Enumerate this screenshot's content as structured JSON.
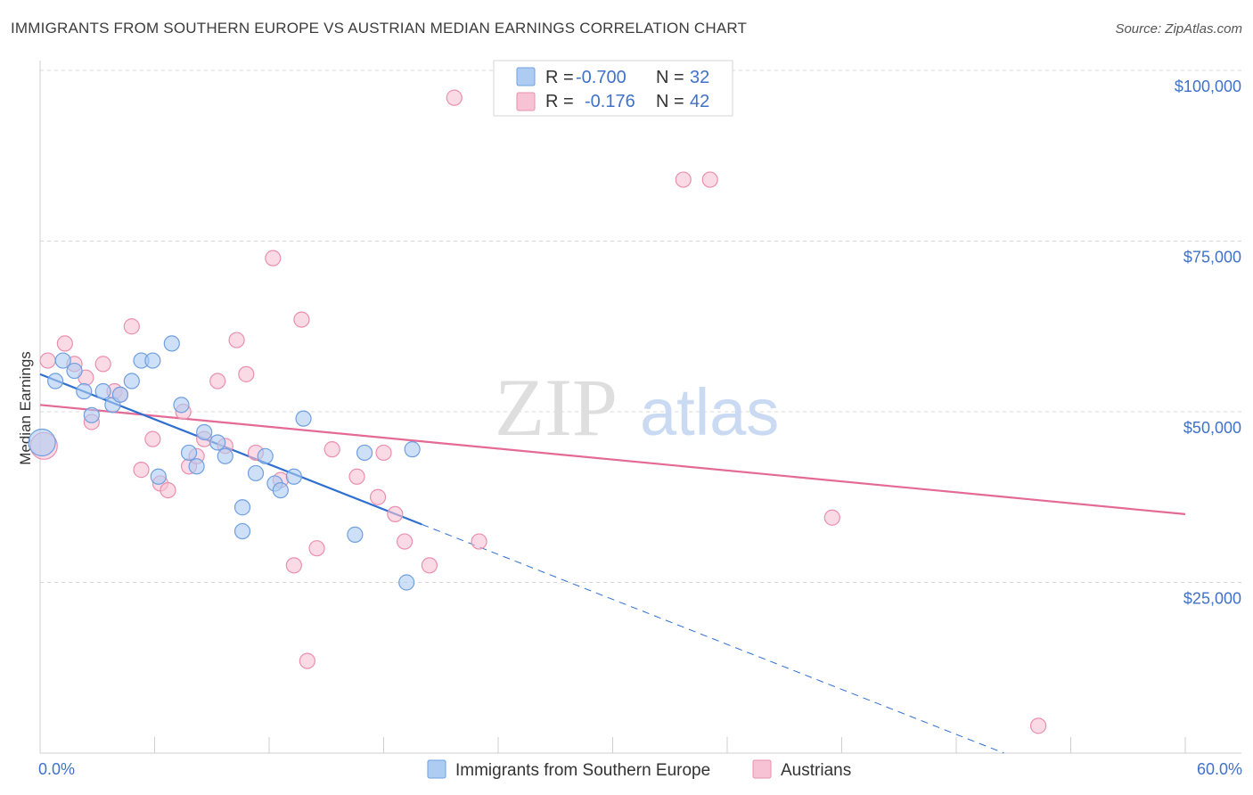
{
  "header": {
    "title": "IMMIGRANTS FROM SOUTHERN EUROPE VS AUSTRIAN MEDIAN EARNINGS CORRELATION CHART",
    "source": "Source: ZipAtlas.com"
  },
  "watermark": {
    "part1": "ZIP",
    "part2": "atlas"
  },
  "colors": {
    "blue_fill": "#aeccf2",
    "blue_stroke": "#6f9fe0",
    "blue_line": "#2e6fcf",
    "pink_fill": "#f7c3d4",
    "pink_stroke": "#ea8fae",
    "pink_line": "#e46a95",
    "axis_text": "#3f72c8",
    "grid": "#d8d8d8"
  },
  "chart_data": {
    "type": "scatter",
    "title": "IMMIGRANTS FROM SOUTHERN EUROPE VS AUSTRIAN MEDIAN EARNINGS CORRELATION CHART",
    "xlabel": "",
    "ylabel": "Median Earnings",
    "xlim": [
      0,
      60
    ],
    "ylim": [
      0,
      100000
    ],
    "x_tick_labels": [
      "0.0%",
      "60.0%"
    ],
    "y_ticks": [
      25000,
      50000,
      75000,
      100000
    ],
    "y_tick_labels": [
      "$25,000",
      "$50,000",
      "$75,000",
      "$100,000"
    ],
    "legend_stats": [
      {
        "r_label": "R =",
        "r": "-0.700",
        "n_label": "N =",
        "n": "32"
      },
      {
        "r_label": "R =",
        "r": "-0.176",
        "n_label": "N =",
        "n": "42"
      }
    ],
    "series": [
      {
        "name": "Immigrants from Southern Europe",
        "trend": {
          "x0": 0,
          "y0": 55500,
          "x1": 20,
          "y1": 33500,
          "dash_to_x": 50.5,
          "dash_to_y": 0
        },
        "points": [
          [
            0.1,
            45500
          ],
          [
            0.8,
            54500
          ],
          [
            1.2,
            57500
          ],
          [
            1.8,
            56000
          ],
          [
            2.3,
            53000
          ],
          [
            2.7,
            49500
          ],
          [
            3.3,
            53000
          ],
          [
            3.8,
            51000
          ],
          [
            4.2,
            52500
          ],
          [
            4.8,
            54500
          ],
          [
            5.3,
            57500
          ],
          [
            5.9,
            57500
          ],
          [
            6.2,
            40500
          ],
          [
            6.9,
            60000
          ],
          [
            7.4,
            51000
          ],
          [
            7.8,
            44000
          ],
          [
            8.2,
            42000
          ],
          [
            8.6,
            47000
          ],
          [
            9.3,
            45500
          ],
          [
            9.7,
            43500
          ],
          [
            10.6,
            36000
          ],
          [
            10.6,
            32500
          ],
          [
            11.3,
            41000
          ],
          [
            11.8,
            43500
          ],
          [
            12.3,
            39500
          ],
          [
            12.6,
            38500
          ],
          [
            13.3,
            40500
          ],
          [
            13.8,
            49000
          ],
          [
            16.5,
            32000
          ],
          [
            17.0,
            44000
          ],
          [
            19.2,
            25000
          ],
          [
            19.5,
            44500
          ]
        ]
      },
      {
        "name": "Austrians",
        "trend": {
          "x0": 0,
          "y0": 51000,
          "x1": 60,
          "y1": 35000
        },
        "points": [
          [
            0.2,
            45000
          ],
          [
            0.4,
            57500
          ],
          [
            1.3,
            60000
          ],
          [
            1.8,
            57000
          ],
          [
            2.4,
            55000
          ],
          [
            2.7,
            48500
          ],
          [
            3.3,
            57000
          ],
          [
            3.9,
            53000
          ],
          [
            4.2,
            52500
          ],
          [
            4.8,
            62500
          ],
          [
            5.3,
            41500
          ],
          [
            5.9,
            46000
          ],
          [
            6.3,
            39500
          ],
          [
            6.7,
            38500
          ],
          [
            7.5,
            50000
          ],
          [
            7.8,
            42000
          ],
          [
            8.2,
            43500
          ],
          [
            8.6,
            46000
          ],
          [
            9.3,
            54500
          ],
          [
            9.7,
            45000
          ],
          [
            10.3,
            60500
          ],
          [
            10.8,
            55500
          ],
          [
            11.3,
            44000
          ],
          [
            12.2,
            72500
          ],
          [
            12.6,
            40000
          ],
          [
            13.3,
            27500
          ],
          [
            13.7,
            63500
          ],
          [
            14.0,
            13500
          ],
          [
            14.5,
            30000
          ],
          [
            15.3,
            44500
          ],
          [
            16.6,
            40500
          ],
          [
            17.7,
            37500
          ],
          [
            18.0,
            44000
          ],
          [
            18.6,
            35000
          ],
          [
            19.1,
            31000
          ],
          [
            20.4,
            27500
          ],
          [
            21.7,
            96000
          ],
          [
            23.0,
            31000
          ],
          [
            33.7,
            84000
          ],
          [
            35.1,
            84000
          ],
          [
            41.5,
            34500
          ],
          [
            52.3,
            4000
          ]
        ]
      }
    ]
  }
}
